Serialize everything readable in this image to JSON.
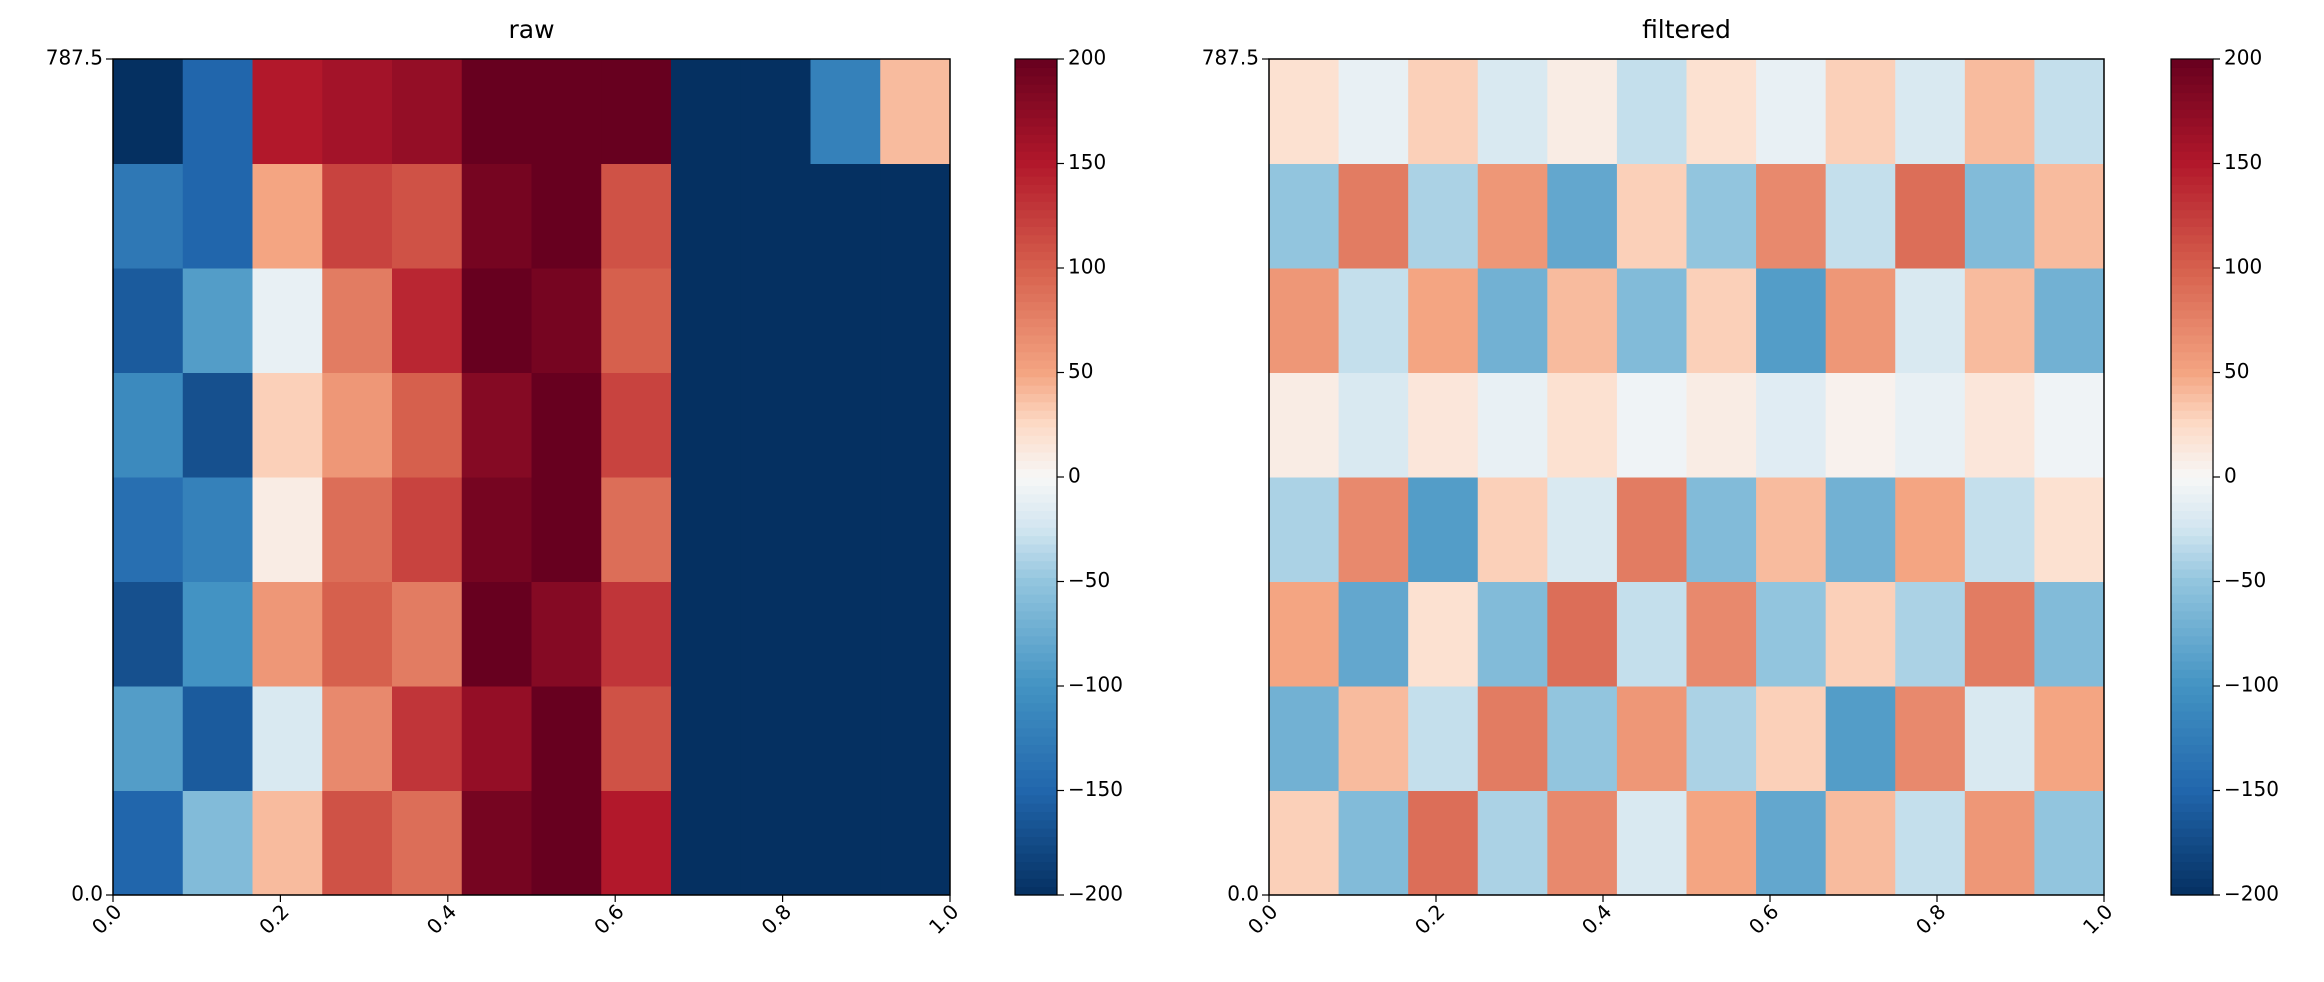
{
  "chart_data": [
    {
      "type": "heatmap",
      "title": "raw",
      "colormap": "RdBu_r",
      "xlim": [
        0,
        1
      ],
      "xticks": [
        {
          "value": 0,
          "label": "0.0"
        },
        0.2,
        0.4,
        0.6,
        0.8,
        {
          "value": 1,
          "label": "1.0"
        }
      ],
      "ylim": [
        0,
        787.5
      ],
      "yticks": [
        {
          "value": 0,
          "label": "0.0"
        },
        787.5
      ],
      "clim": [
        -200,
        200
      ],
      "cticks": [
        {
          "value": -200,
          "label": "−200"
        },
        {
          "value": -150,
          "label": "−150"
        },
        {
          "value": -100,
          "label": "−100"
        },
        {
          "value": -50,
          "label": "−50"
        },
        0,
        50,
        100,
        150,
        200
      ],
      "z": [
        [
          -150,
          -60,
          40,
          110,
          90,
          190,
          200,
          150,
          -200,
          -200,
          -200,
          -200
        ],
        [
          -90,
          -160,
          -20,
          70,
          130,
          170,
          200,
          110,
          -200,
          -200,
          -200,
          -200
        ],
        [
          -170,
          -100,
          60,
          100,
          80,
          200,
          180,
          130,
          -200,
          -200,
          -200,
          -200
        ],
        [
          -140,
          -120,
          10,
          90,
          120,
          190,
          200,
          90,
          -200,
          -200,
          -200,
          -200
        ],
        [
          -110,
          -170,
          30,
          60,
          100,
          180,
          200,
          120,
          -200,
          -200,
          -200,
          -200
        ],
        [
          -160,
          -90,
          -10,
          80,
          140,
          200,
          190,
          100,
          -200,
          -200,
          -200,
          -200
        ],
        [
          -130,
          -150,
          50,
          120,
          110,
          190,
          200,
          110,
          -200,
          -200,
          -200,
          -200
        ],
        [
          -200,
          -150,
          150,
          160,
          170,
          200,
          200,
          200,
          -200,
          -200,
          -120,
          40
        ]
      ]
    },
    {
      "type": "heatmap",
      "title": "filtered",
      "colormap": "RdBu_r",
      "xlim": [
        0,
        1
      ],
      "xticks": [
        {
          "value": 0,
          "label": "0.0"
        },
        0.2,
        0.4,
        0.6,
        0.8,
        {
          "value": 1,
          "label": "1.0"
        }
      ],
      "ylim": [
        0,
        787.5
      ],
      "yticks": [
        {
          "value": 0,
          "label": "0.0"
        },
        787.5
      ],
      "clim": [
        -200,
        200
      ],
      "cticks": [
        {
          "value": -200,
          "label": "−200"
        },
        {
          "value": -150,
          "label": "−150"
        },
        {
          "value": -100,
          "label": "−100"
        },
        {
          "value": -50,
          "label": "−50"
        },
        0,
        50,
        100,
        150,
        200
      ],
      "z": [
        [
          30,
          -60,
          90,
          -40,
          70,
          -20,
          50,
          -80,
          40,
          -30,
          60,
          -50
        ],
        [
          -70,
          40,
          -30,
          80,
          -50,
          60,
          -40,
          30,
          -90,
          70,
          -20,
          50
        ],
        [
          50,
          -80,
          20,
          -60,
          90,
          -30,
          70,
          -50,
          30,
          -40,
          80,
          -60
        ],
        [
          -40,
          70,
          -90,
          30,
          -20,
          80,
          -60,
          40,
          -70,
          50,
          -30,
          20
        ],
        [
          10,
          -20,
          15,
          -10,
          20,
          -5,
          10,
          -15,
          5,
          -10,
          15,
          -5
        ],
        [
          60,
          -30,
          50,
          -70,
          40,
          -60,
          30,
          -90,
          60,
          -20,
          40,
          -70
        ],
        [
          -50,
          80,
          -40,
          60,
          -80,
          30,
          -50,
          70,
          -30,
          90,
          -60,
          40
        ],
        [
          20,
          -10,
          30,
          -20,
          10,
          -30,
          20,
          -10,
          30,
          -20,
          40,
          -30
        ]
      ]
    }
  ]
}
